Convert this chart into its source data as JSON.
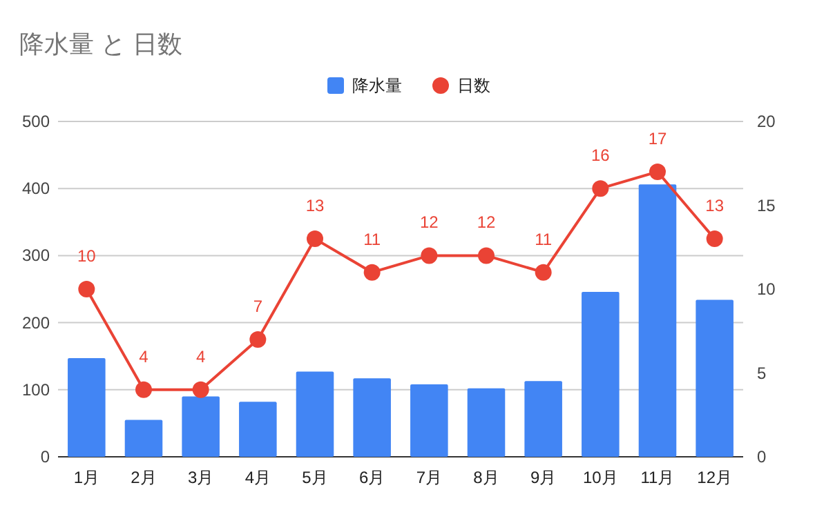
{
  "chart_data": {
    "type": "bar",
    "title": "降水量 と 日数",
    "categories": [
      "1月",
      "2月",
      "3月",
      "4月",
      "5月",
      "6月",
      "7月",
      "8月",
      "9月",
      "10月",
      "11月",
      "12月"
    ],
    "series": [
      {
        "name": "降水量",
        "color": "#4285f4",
        "values": [
          147,
          55,
          90,
          82,
          127,
          117,
          108,
          102,
          113,
          246,
          406,
          234
        ]
      },
      {
        "name": "日数",
        "type": "line",
        "axis": "y2",
        "color": "#ea4335",
        "marker": "circle",
        "values": [
          10,
          4,
          4,
          7,
          13,
          11,
          12,
          12,
          11,
          16,
          17,
          13
        ],
        "value_labels": [
          "10",
          "4",
          "4",
          "7",
          "13",
          "11",
          "12",
          "12",
          "11",
          "16",
          "17",
          "13"
        ]
      }
    ],
    "ylim": [
      0,
      500
    ],
    "yticks": [
      0,
      100,
      200,
      300,
      400,
      500
    ],
    "y2lim": [
      0,
      20
    ],
    "y2ticks": [
      0,
      5,
      10,
      15,
      20
    ],
    "grid": "y",
    "legend": "top"
  }
}
